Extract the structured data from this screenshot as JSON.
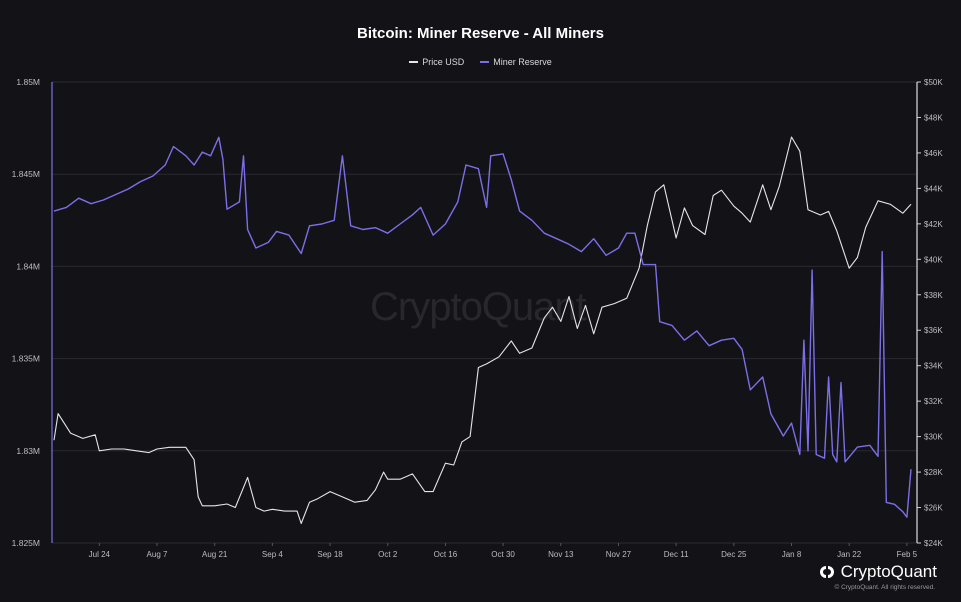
{
  "chart_data": {
    "type": "line",
    "title": "Bitcoin: Miner Reserve - All Miners",
    "x_ticks": [
      "Jul 24",
      "Aug 7",
      "Aug 21",
      "Sep 4",
      "Sep 18",
      "Oct 2",
      "Oct 16",
      "Oct 30",
      "Nov 13",
      "Nov 27",
      "Dec 11",
      "Dec 25",
      "Jan 8",
      "Jan 22",
      "Feb 5"
    ],
    "x_range": [
      "2023-07-13",
      "2024-02-06"
    ],
    "y_left": {
      "ticks": [
        "1.825M",
        "1.83M",
        "1.835M",
        "1.84M",
        "1.845M",
        "1.85M"
      ],
      "tick_values": [
        1825000,
        1830000,
        1835000,
        1840000,
        1845000,
        1850000
      ],
      "range": [
        1825000,
        1850000
      ]
    },
    "y_right": {
      "ticks": [
        "$24K",
        "$26K",
        "$28K",
        "$30K",
        "$32K",
        "$34K",
        "$36K",
        "$38K",
        "$40K",
        "$42K",
        "$44K",
        "$46K",
        "$48K",
        "$50K"
      ],
      "tick_values": [
        24000,
        26000,
        28000,
        30000,
        32000,
        34000,
        36000,
        38000,
        40000,
        42000,
        44000,
        46000,
        48000,
        50000
      ],
      "range": [
        24000,
        50000
      ]
    },
    "grid": "horizontal",
    "legend_placement": "top-center",
    "series": [
      {
        "name": "Price USD",
        "axis": "right",
        "color": "#e6e6e6",
        "points": [
          [
            "2023-07-13",
            29800
          ],
          [
            "2023-07-14",
            31300
          ],
          [
            "2023-07-17",
            30200
          ],
          [
            "2023-07-20",
            29900
          ],
          [
            "2023-07-23",
            30100
          ],
          [
            "2023-07-24",
            29200
          ],
          [
            "2023-07-27",
            29300
          ],
          [
            "2023-07-30",
            29300
          ],
          [
            "2023-08-02",
            29200
          ],
          [
            "2023-08-05",
            29100
          ],
          [
            "2023-08-07",
            29300
          ],
          [
            "2023-08-10",
            29400
          ],
          [
            "2023-08-14",
            29400
          ],
          [
            "2023-08-16",
            28700
          ],
          [
            "2023-08-17",
            26600
          ],
          [
            "2023-08-18",
            26100
          ],
          [
            "2023-08-21",
            26100
          ],
          [
            "2023-08-24",
            26200
          ],
          [
            "2023-08-26",
            26000
          ],
          [
            "2023-08-29",
            27700
          ],
          [
            "2023-08-31",
            26000
          ],
          [
            "2023-09-02",
            25800
          ],
          [
            "2023-09-04",
            25900
          ],
          [
            "2023-09-07",
            25800
          ],
          [
            "2023-09-10",
            25800
          ],
          [
            "2023-09-11",
            25100
          ],
          [
            "2023-09-13",
            26300
          ],
          [
            "2023-09-15",
            26500
          ],
          [
            "2023-09-18",
            26900
          ],
          [
            "2023-09-21",
            26600
          ],
          [
            "2023-09-24",
            26300
          ],
          [
            "2023-09-27",
            26400
          ],
          [
            "2023-09-29",
            27000
          ],
          [
            "2023-10-01",
            28000
          ],
          [
            "2023-10-02",
            27600
          ],
          [
            "2023-10-05",
            27600
          ],
          [
            "2023-10-08",
            27900
          ],
          [
            "2023-10-11",
            26900
          ],
          [
            "2023-10-13",
            26900
          ],
          [
            "2023-10-16",
            28500
          ],
          [
            "2023-10-18",
            28400
          ],
          [
            "2023-10-20",
            29700
          ],
          [
            "2023-10-22",
            30000
          ],
          [
            "2023-10-24",
            33900
          ],
          [
            "2023-10-26",
            34100
          ],
          [
            "2023-10-29",
            34500
          ],
          [
            "2023-11-01",
            35400
          ],
          [
            "2023-11-03",
            34700
          ],
          [
            "2023-11-06",
            35000
          ],
          [
            "2023-11-09",
            36700
          ],
          [
            "2023-11-11",
            37300
          ],
          [
            "2023-11-13",
            36500
          ],
          [
            "2023-11-15",
            37900
          ],
          [
            "2023-11-17",
            36100
          ],
          [
            "2023-11-19",
            37400
          ],
          [
            "2023-11-21",
            35800
          ],
          [
            "2023-11-23",
            37300
          ],
          [
            "2023-11-26",
            37500
          ],
          [
            "2023-11-29",
            37800
          ],
          [
            "2023-12-02",
            39500
          ],
          [
            "2023-12-04",
            41900
          ],
          [
            "2023-12-06",
            43800
          ],
          [
            "2023-12-08",
            44200
          ],
          [
            "2023-12-11",
            41200
          ],
          [
            "2023-12-13",
            42900
          ],
          [
            "2023-12-15",
            41900
          ],
          [
            "2023-12-18",
            41400
          ],
          [
            "2023-12-20",
            43600
          ],
          [
            "2023-12-22",
            43900
          ],
          [
            "2023-12-25",
            43000
          ],
          [
            "2023-12-27",
            42600
          ],
          [
            "2023-12-29",
            42100
          ],
          [
            "2024-01-01",
            44200
          ],
          [
            "2024-01-03",
            42800
          ],
          [
            "2024-01-05",
            44100
          ],
          [
            "2024-01-08",
            46900
          ],
          [
            "2024-01-10",
            46100
          ],
          [
            "2024-01-12",
            42800
          ],
          [
            "2024-01-15",
            42500
          ],
          [
            "2024-01-17",
            42700
          ],
          [
            "2024-01-19",
            41600
          ],
          [
            "2024-01-22",
            39500
          ],
          [
            "2024-01-24",
            40100
          ],
          [
            "2024-01-26",
            41800
          ],
          [
            "2024-01-29",
            43300
          ],
          [
            "2024-02-01",
            43100
          ],
          [
            "2024-02-04",
            42600
          ],
          [
            "2024-02-06",
            43100
          ]
        ]
      },
      {
        "name": "Miner Reserve",
        "axis": "left",
        "color": "#7b6fe8",
        "points": [
          [
            "2023-07-13",
            1843000
          ],
          [
            "2023-07-16",
            1843200
          ],
          [
            "2023-07-19",
            1843700
          ],
          [
            "2023-07-22",
            1843400
          ],
          [
            "2023-07-25",
            1843600
          ],
          [
            "2023-07-28",
            1843900
          ],
          [
            "2023-07-31",
            1844200
          ],
          [
            "2023-08-03",
            1844600
          ],
          [
            "2023-08-06",
            1844900
          ],
          [
            "2023-08-09",
            1845500
          ],
          [
            "2023-08-11",
            1846500
          ],
          [
            "2023-08-14",
            1846000
          ],
          [
            "2023-08-16",
            1845500
          ],
          [
            "2023-08-18",
            1846200
          ],
          [
            "2023-08-20",
            1846000
          ],
          [
            "2023-08-22",
            1847000
          ],
          [
            "2023-08-23",
            1845800
          ],
          [
            "2023-08-24",
            1843100
          ],
          [
            "2023-08-27",
            1843500
          ],
          [
            "2023-08-28",
            1846000
          ],
          [
            "2023-08-29",
            1842000
          ],
          [
            "2023-08-31",
            1841000
          ],
          [
            "2023-09-03",
            1841300
          ],
          [
            "2023-09-05",
            1841900
          ],
          [
            "2023-09-08",
            1841700
          ],
          [
            "2023-09-11",
            1840700
          ],
          [
            "2023-09-13",
            1842200
          ],
          [
            "2023-09-16",
            1842300
          ],
          [
            "2023-09-19",
            1842500
          ],
          [
            "2023-09-21",
            1846000
          ],
          [
            "2023-09-23",
            1842200
          ],
          [
            "2023-09-26",
            1842000
          ],
          [
            "2023-09-29",
            1842100
          ],
          [
            "2023-10-02",
            1841800
          ],
          [
            "2023-10-05",
            1842300
          ],
          [
            "2023-10-08",
            1842800
          ],
          [
            "2023-10-10",
            1843200
          ],
          [
            "2023-10-13",
            1841700
          ],
          [
            "2023-10-16",
            1842300
          ],
          [
            "2023-10-19",
            1843500
          ],
          [
            "2023-10-21",
            1845500
          ],
          [
            "2023-10-24",
            1845300
          ],
          [
            "2023-10-26",
            1843200
          ],
          [
            "2023-10-27",
            1846000
          ],
          [
            "2023-10-30",
            1846100
          ],
          [
            "2023-11-01",
            1844700
          ],
          [
            "2023-11-03",
            1843000
          ],
          [
            "2023-11-06",
            1842500
          ],
          [
            "2023-11-09",
            1841800
          ],
          [
            "2023-11-12",
            1841500
          ],
          [
            "2023-11-15",
            1841200
          ],
          [
            "2023-11-18",
            1840800
          ],
          [
            "2023-11-21",
            1841500
          ],
          [
            "2023-11-24",
            1840600
          ],
          [
            "2023-11-27",
            1841000
          ],
          [
            "2023-11-29",
            1841800
          ],
          [
            "2023-12-01",
            1841800
          ],
          [
            "2023-12-03",
            1840100
          ],
          [
            "2023-12-06",
            1840100
          ],
          [
            "2023-12-07",
            1837000
          ],
          [
            "2023-12-10",
            1836800
          ],
          [
            "2023-12-13",
            1836000
          ],
          [
            "2023-12-16",
            1836500
          ],
          [
            "2023-12-19",
            1835700
          ],
          [
            "2023-12-22",
            1836000
          ],
          [
            "2023-12-25",
            1836100
          ],
          [
            "2023-12-27",
            1835500
          ],
          [
            "2023-12-29",
            1833300
          ],
          [
            "2024-01-01",
            1834000
          ],
          [
            "2024-01-03",
            1832000
          ],
          [
            "2024-01-06",
            1830800
          ],
          [
            "2024-01-08",
            1831500
          ],
          [
            "2024-01-10",
            1829800
          ],
          [
            "2024-01-11",
            1836000
          ],
          [
            "2024-01-12",
            1830000
          ],
          [
            "2024-01-13",
            1839800
          ],
          [
            "2024-01-14",
            1829800
          ],
          [
            "2024-01-16",
            1829600
          ],
          [
            "2024-01-17",
            1834000
          ],
          [
            "2024-01-18",
            1829800
          ],
          [
            "2024-01-19",
            1829400
          ],
          [
            "2024-01-20",
            1833700
          ],
          [
            "2024-01-21",
            1829400
          ],
          [
            "2024-01-24",
            1830200
          ],
          [
            "2024-01-27",
            1830300
          ],
          [
            "2024-01-29",
            1829700
          ],
          [
            "2024-01-30",
            1840800
          ],
          [
            "2024-01-31",
            1827200
          ],
          [
            "2024-02-02",
            1827100
          ],
          [
            "2024-02-04",
            1826700
          ],
          [
            "2024-02-05",
            1826400
          ],
          [
            "2024-02-06",
            1829000
          ]
        ]
      }
    ]
  },
  "legend": {
    "price_label": "Price USD",
    "reserve_label": "Miner Reserve",
    "price_color": "#e6e6e6",
    "reserve_color": "#7b6fe8"
  },
  "watermark": "CryptoQuant",
  "brand": {
    "name": "CryptoQuant",
    "copyright": "© CryptoQuant. All rights reserved."
  }
}
